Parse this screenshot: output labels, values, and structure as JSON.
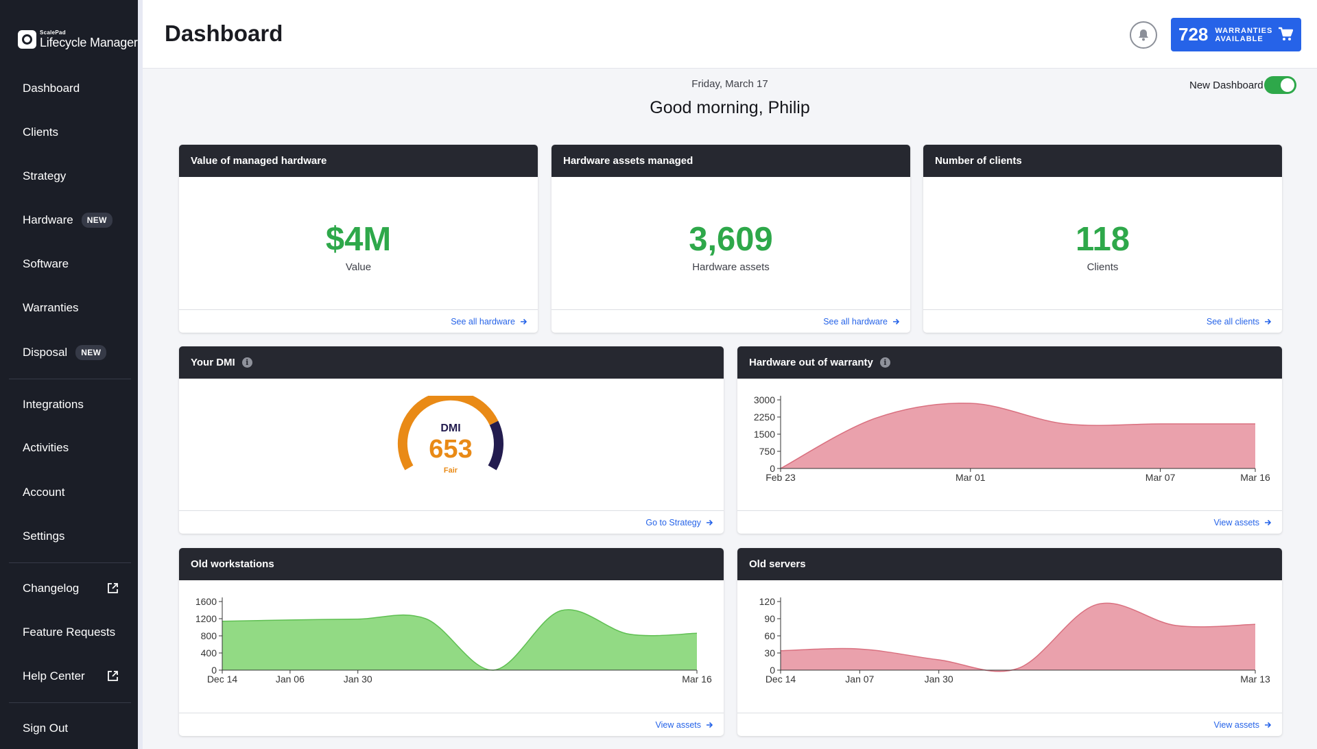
{
  "app": {
    "logo_small": "ScalePad",
    "logo_name": "Lifecycle Manager"
  },
  "sidebar": {
    "items": [
      {
        "label": "Dashboard"
      },
      {
        "label": "Clients"
      },
      {
        "label": "Strategy"
      },
      {
        "label": "Hardware",
        "badge": "NEW"
      },
      {
        "label": "Software"
      },
      {
        "label": "Warranties"
      },
      {
        "label": "Disposal",
        "badge": "NEW"
      },
      {
        "label": "Integrations"
      },
      {
        "label": "Activities"
      },
      {
        "label": "Account"
      },
      {
        "label": "Settings"
      },
      {
        "label": "Changelog",
        "icon": "external-link-icon"
      },
      {
        "label": "Feature Requests"
      },
      {
        "label": "Help Center",
        "icon": "external-link-icon"
      },
      {
        "label": "Sign Out"
      }
    ]
  },
  "header": {
    "title": "Dashboard",
    "warranties_count": "728",
    "warranties_label": "WARRANTIES AVAILABLE"
  },
  "main": {
    "date": "Friday, March 17",
    "greeting": "Good morning, Philip",
    "toggle_label": "New Dashboard",
    "toggle_on": true
  },
  "cards": {
    "value": {
      "title": "Value of managed hardware",
      "value": "$4M",
      "label": "Value",
      "link": "See all hardware"
    },
    "assets": {
      "title": "Hardware assets managed",
      "value": "3,609",
      "label": "Hardware assets",
      "link": "See all hardware"
    },
    "clients": {
      "title": "Number of clients",
      "value": "118",
      "label": "Clients",
      "link": "See all clients"
    },
    "dmi": {
      "title": "Your DMI",
      "gauge_label": "DMI",
      "score": "653",
      "rating": "Fair",
      "link": "Go to Strategy"
    },
    "warranty": {
      "title": "Hardware out of warranty",
      "link": "View assets"
    },
    "workstations": {
      "title": "Old workstations",
      "link": "View assets"
    },
    "servers": {
      "title": "Old servers",
      "link": "View assets"
    }
  },
  "colors": {
    "accent_blue": "#2563e8",
    "kpi_green": "#2ea84a",
    "gauge_orange": "#e98a16",
    "gauge_navy": "#231c4f",
    "area_red": "#eaa1ac",
    "area_green": "#92da84"
  },
  "chart_data": [
    {
      "type": "gauge",
      "title": "DMI",
      "value": 653,
      "rating": "Fair"
    },
    {
      "type": "area",
      "title": "Hardware out of warranty",
      "x": [
        "Feb 23",
        "Feb 26",
        "Mar 01",
        "Mar 02",
        "Mar 07",
        "Mar 16"
      ],
      "y": [
        0,
        2200,
        2850,
        1950,
        1950,
        1950
      ],
      "ticks_x": [
        "Feb 23",
        "Mar 01",
        "Mar 07",
        "Mar 16"
      ],
      "ticks_y": [
        "0",
        "750",
        "1500",
        "2250",
        "3000"
      ],
      "ylim": [
        0,
        3000
      ],
      "color": "#eaa1ac"
    },
    {
      "type": "area",
      "title": "Old workstations",
      "x": [
        "Dec 14",
        "Jan 06",
        "Jan 30",
        "Feb 08",
        "Feb 15",
        "Feb 24",
        "Mar 01",
        "Mar 16"
      ],
      "y": [
        1140,
        1170,
        1190,
        1200,
        0,
        1390,
        840,
        860
      ],
      "ticks_x": [
        "Dec 14",
        "Jan 06",
        "Jan 30",
        "Mar 16"
      ],
      "ticks_y": [
        "0",
        "400",
        "800",
        "1200",
        "1600"
      ],
      "ylim": [
        0,
        1600
      ],
      "color": "#92da84"
    },
    {
      "type": "area",
      "title": "Old servers",
      "x": [
        "Dec 14",
        "Jan 07",
        "Jan 30",
        "Feb 12",
        "Feb 28",
        "Mar 02",
        "Mar 13"
      ],
      "y": [
        34,
        37,
        18,
        3,
        115,
        78,
        80
      ],
      "ticks_x": [
        "Dec 14",
        "Jan 07",
        "Jan 30",
        "Mar 13"
      ],
      "ticks_y": [
        "0",
        "30",
        "60",
        "90",
        "120"
      ],
      "ylim": [
        0,
        120
      ],
      "color": "#eaa1ac"
    }
  ]
}
